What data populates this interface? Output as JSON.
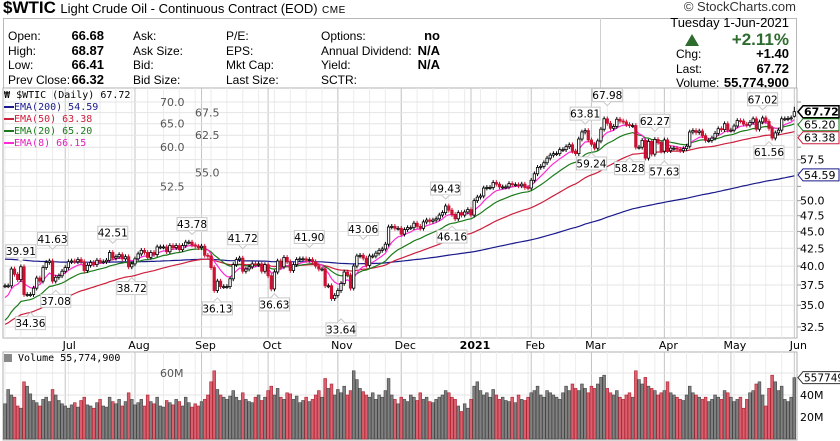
{
  "header": {
    "symbol": "$WTIC",
    "name": "Light Crude Oil - Continuous Contract (EOD)",
    "exchange": "CME",
    "watermark": "© StockCharts.com",
    "date": "Tuesday  1-Jun-2021",
    "pct_change": "+2.11%",
    "direction": "up",
    "up_color": "#2e6b2e"
  },
  "info": {
    "col1": [
      {
        "label": "Open:",
        "value": "66.68"
      },
      {
        "label": "High:",
        "value": "68.87"
      },
      {
        "label": "Low:",
        "value": "66.41"
      },
      {
        "label": "Prev Close:",
        "value": "66.32"
      }
    ],
    "col2": [
      {
        "label": "Ask:",
        "value": ""
      },
      {
        "label": "Ask Size:",
        "value": ""
      },
      {
        "label": "Bid:",
        "value": ""
      },
      {
        "label": "Bid Size:",
        "value": ""
      }
    ],
    "col3": [
      {
        "label": "P/E:",
        "value": ""
      },
      {
        "label": "EPS:",
        "value": ""
      },
      {
        "label": "Mkt Cap:",
        "value": ""
      },
      {
        "label": "Last Size:",
        "value": ""
      }
    ],
    "col4": [
      {
        "label": "Options:",
        "value": "no"
      },
      {
        "label": "Annual Dividend:",
        "value": "N/A"
      },
      {
        "label": "Yield:",
        "value": "N/A"
      },
      {
        "label": "SCTR:",
        "value": ""
      }
    ],
    "right": [
      {
        "label": "Chg:",
        "value": "+1.40"
      },
      {
        "label": "Last:",
        "value": "67.72"
      },
      {
        "label": "Volume:",
        "value": "55,774,900"
      }
    ]
  },
  "legend": {
    "price": "$WTIC (Daily) 67.72",
    "ema200": "EMA(200) 54.59",
    "ema50": "EMA(50) 63.38",
    "ema20": "EMA(20) 65.20",
    "ema8": "EMA(8) 66.15",
    "volume": "Volume 55,774,900"
  },
  "chart_data": {
    "type": "candlestick",
    "scale": "log",
    "grid": true,
    "ylim": [
      32.5,
      70.0
    ],
    "yticks": [
      "70.0",
      "67.5",
      "65.0",
      "62.5",
      "60.0",
      "57.5",
      "55.0",
      "52.5",
      "50.0",
      "47.5",
      "45.0",
      "42.5",
      "40.0",
      "37.5",
      "35.0",
      "32.5"
    ],
    "xticks": [
      {
        "label": "Jul",
        "index": 19
      },
      {
        "label": "Aug",
        "index": 41
      },
      {
        "label": "Sep",
        "index": 62
      },
      {
        "label": "Oct",
        "index": 83
      },
      {
        "label": "Nov",
        "index": 105
      },
      {
        "label": "Dec",
        "index": 125
      },
      {
        "label": "2021",
        "index": 147,
        "bold": true
      },
      {
        "label": "Feb",
        "index": 166
      },
      {
        "label": "Mar",
        "index": 185
      },
      {
        "label": "Apr",
        "index": 208
      },
      {
        "label": "May",
        "index": 229
      },
      {
        "label": "Jun",
        "index": 249
      }
    ],
    "close": [
      37.4,
      37.4,
      39.6,
      38.9,
      38.2,
      39.9,
      36.3,
      36.3,
      36.3,
      37.1,
      38.4,
      38.0,
      39.8,
      40.5,
      40.7,
      38.0,
      38.5,
      38.7,
      39.3,
      39.8,
      40.6,
      40.7,
      40.6,
      40.9,
      40.6,
      39.4,
      40.1,
      40.5,
      40.2,
      40.8,
      40.6,
      40.6,
      40.8,
      41.9,
      41.1,
      41.3,
      41.6,
      41.0,
      41.3,
      39.9,
      40.3,
      41.0,
      41.7,
      42.2,
      41.9,
      41.2,
      41.9,
      41.6,
      42.7,
      42.7,
      42.7,
      42.0,
      42.9,
      42.6,
      42.9,
      42.3,
      42.9,
      43.4,
      43.4,
      43.0,
      42.8,
      42.6,
      42.8,
      41.5,
      41.4,
      39.8,
      36.8,
      38.0,
      37.3,
      37.3,
      37.3,
      38.3,
      40.2,
      40.9,
      41.1,
      39.3,
      39.6,
      39.9,
      40.3,
      40.2,
      40.3,
      39.3,
      40.2,
      38.7,
      37.0,
      39.2,
      40.7,
      39.9,
      41.2,
      40.6,
      39.4,
      40.2,
      40.9,
      41.0,
      41.0,
      40.8,
      40.9,
      40.6,
      40.0,
      39.6,
      39.6,
      37.4,
      37.4,
      35.8,
      36.2,
      36.8,
      37.7,
      39.2,
      38.8,
      37.1,
      40.0,
      41.4,
      41.5,
      41.1,
      40.1,
      41.4,
      41.4,
      41.8,
      42.2,
      42.4,
      43.1,
      45.7,
      45.8,
      45.5,
      45.5,
      44.6,
      45.3,
      45.6,
      45.6,
      46.3,
      45.8,
      45.5,
      46.5,
      46.8,
      46.6,
      46.8,
      47.0,
      47.6,
      48.0,
      49.1,
      48.4,
      47.7,
      47.0,
      48.0,
      47.6,
      48.1,
      48.5,
      47.6,
      50.0,
      50.6,
      50.8,
      52.2,
      52.3,
      52.3,
      53.2,
      52.9,
      52.4,
      52.4,
      52.4,
      53.0,
      52.8,
      52.8,
      52.6,
      52.9,
      52.3,
      52.2,
      53.6,
      54.8,
      56.0,
      56.2,
      56.9,
      57.8,
      58.4,
      58.7,
      58.7,
      59.5,
      59.5,
      60.1,
      60.5,
      59.2,
      58.7,
      61.7,
      63.2,
      63.5,
      61.5,
      60.6,
      59.8,
      61.3,
      63.8,
      66.1,
      65.1,
      64.0,
      64.4,
      66.0,
      65.6,
      65.4,
      64.8,
      64.6,
      64.6,
      60.0,
      60.0,
      61.4,
      57.8,
      61.2,
      58.6,
      61.6,
      61.0,
      59.2,
      61.5,
      59.3,
      59.8,
      59.8,
      59.6,
      59.3,
      59.7,
      60.2,
      63.2,
      63.5,
      63.1,
      63.4,
      62.4,
      61.4,
      61.4,
      61.9,
      62.9,
      63.9,
      63.7,
      65.0,
      63.6,
      63.6,
      64.5,
      65.7,
      65.6,
      64.9,
      64.7,
      65.3,
      66.1,
      63.8,
      65.4,
      66.3,
      65.5,
      64.0,
      61.9,
      63.0,
      63.6,
      66.1,
      66.1,
      66.2,
      66.32,
      67.72
    ],
    "last_bar": {
      "open": 66.68,
      "high": 68.87,
      "low": 66.41,
      "close": 67.72
    },
    "volume_millions": [
      32,
      45,
      40,
      38,
      30,
      28,
      52,
      48,
      41,
      35,
      33,
      30,
      36,
      38,
      34,
      45,
      40,
      35,
      32,
      30,
      28,
      31,
      33,
      29,
      35,
      38,
      31,
      30,
      28,
      33,
      36,
      30,
      29,
      38,
      34,
      32,
      36,
      30,
      34,
      42,
      36,
      31,
      33,
      36,
      30,
      40,
      34,
      32,
      38,
      30,
      29,
      35,
      33,
      31,
      36,
      34,
      30,
      38,
      33,
      29,
      32,
      30,
      34,
      36,
      40,
      52,
      62,
      45,
      40,
      38,
      36,
      39,
      44,
      38,
      35,
      42,
      36,
      34,
      33,
      38,
      40,
      35,
      38,
      44,
      48,
      40,
      46,
      38,
      36,
      42,
      41,
      36,
      39,
      33,
      35,
      38,
      34,
      36,
      40,
      44,
      38,
      55,
      46,
      50,
      40,
      45,
      42,
      48,
      40,
      44,
      62,
      54,
      46,
      43,
      40,
      38,
      42,
      36,
      40,
      38,
      44,
      55,
      40,
      36,
      32,
      38,
      36,
      34,
      40,
      38,
      35,
      42,
      36,
      38,
      34,
      33,
      36,
      38,
      40,
      44,
      42,
      38,
      36,
      30,
      25,
      32,
      28,
      36,
      48,
      52,
      44,
      40,
      42,
      38,
      45,
      40,
      36,
      38,
      35,
      34,
      38,
      33,
      40,
      36,
      35,
      38,
      42,
      44,
      48,
      40,
      38,
      44,
      42,
      40,
      38,
      36,
      42,
      48,
      44,
      50,
      46,
      44,
      50,
      46,
      42,
      48,
      46,
      50,
      56,
      58,
      46,
      42,
      40,
      44,
      38,
      36,
      40,
      42,
      38,
      62,
      54,
      50,
      56,
      48,
      46,
      44,
      40,
      42,
      44,
      52,
      42,
      40,
      38,
      36,
      35,
      40,
      48,
      42,
      40,
      38,
      36,
      38,
      34,
      36,
      40,
      38,
      36,
      44,
      42,
      38,
      34,
      36,
      38,
      28,
      36,
      42,
      44,
      50,
      52,
      40,
      30,
      46,
      58,
      52,
      44,
      48,
      36,
      34,
      38,
      55.77
    ],
    "volume_yticks": [
      "60M",
      "40M",
      "20M"
    ],
    "volume_last_tag": "55774900",
    "annotations": [
      {
        "text": "39.91",
        "index": 5,
        "pos": "above"
      },
      {
        "text": "34.36",
        "index": 8,
        "pos": "below"
      },
      {
        "text": "41.63",
        "index": 15,
        "pos": "above"
      },
      {
        "text": "37.08",
        "index": 16,
        "pos": "below"
      },
      {
        "text": "42.51",
        "index": 34,
        "pos": "above"
      },
      {
        "text": "38.72",
        "index": 40,
        "pos": "below"
      },
      {
        "text": "43.78",
        "index": 59,
        "pos": "above"
      },
      {
        "text": "36.13",
        "index": 67,
        "pos": "below"
      },
      {
        "text": "41.72",
        "index": 75,
        "pos": "above"
      },
      {
        "text": "36.63",
        "index": 85,
        "pos": "below"
      },
      {
        "text": "41.90",
        "index": 96,
        "pos": "above"
      },
      {
        "text": "33.64",
        "index": 106,
        "pos": "below"
      },
      {
        "text": "43.06",
        "index": 113,
        "pos": "above"
      },
      {
        "text": "49.43",
        "index": 139,
        "pos": "above"
      },
      {
        "text": "46.16",
        "index": 141,
        "pos": "below"
      },
      {
        "text": "63.81",
        "index": 183,
        "pos": "above"
      },
      {
        "text": "59.24",
        "index": 185,
        "pos": "below"
      },
      {
        "text": "67.98",
        "index": 190,
        "pos": "above"
      },
      {
        "text": "58.28",
        "index": 197,
        "pos": "below"
      },
      {
        "text": "62.27",
        "index": 205,
        "pos": "above"
      },
      {
        "text": "57.63",
        "index": 208,
        "pos": "below"
      },
      {
        "text": "67.02",
        "index": 239,
        "pos": "above"
      },
      {
        "text": "61.56",
        "index": 241,
        "pos": "below"
      }
    ],
    "right_tags": [
      {
        "text": "67.72",
        "value": 67.72,
        "color": "#000000",
        "bold": true
      },
      {
        "text": "65.20",
        "value": 65.2,
        "color": "#1a7a1a"
      },
      {
        "text": "63.38",
        "value": 63.38,
        "color": "#cc1f3c"
      },
      {
        "text": "54.59",
        "value": 54.59,
        "color": "#1a1a8c"
      }
    ],
    "series": [
      {
        "name": "EMA(200)",
        "period": 200,
        "color": "#1a1a8c",
        "last": 54.59
      },
      {
        "name": "EMA(50)",
        "period": 50,
        "color": "#cc1f3c",
        "last": 63.38
      },
      {
        "name": "EMA(20)",
        "period": 20,
        "color": "#1a7a1a",
        "last": 65.2
      },
      {
        "name": "EMA(8)",
        "period": 8,
        "color": "#ff2ad4",
        "last": 66.15
      }
    ],
    "colors": {
      "up": "#000000",
      "down": "#cc1133",
      "volume_up": "#808080",
      "volume_down": "#d9606e"
    }
  }
}
